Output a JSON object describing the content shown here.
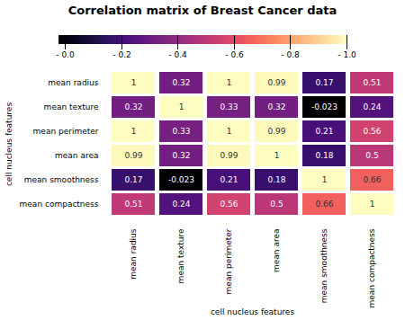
{
  "chart_data": {
    "type": "heatmap",
    "title": "Correlation matrix of Breast Cancer data",
    "xlabel": "cell nucleus features",
    "ylabel": "cell nucleus features",
    "categories": [
      "mean radius",
      "mean texture",
      "mean perimeter",
      "mean area",
      "mean smoothness",
      "mean compactness"
    ],
    "values": [
      [
        1.0,
        0.32,
        1.0,
        0.99,
        0.17,
        0.51
      ],
      [
        0.32,
        1.0,
        0.33,
        0.32,
        -0.023,
        0.24
      ],
      [
        1.0,
        0.33,
        1.0,
        0.99,
        0.21,
        0.56
      ],
      [
        0.99,
        0.32,
        0.99,
        1.0,
        0.18,
        0.5
      ],
      [
        0.17,
        -0.023,
        0.21,
        0.18,
        1.0,
        0.66
      ],
      [
        0.51,
        0.24,
        0.56,
        0.5,
        0.66,
        1.0
      ]
    ],
    "data_labels": true,
    "colorbar_range": [
      -0.023,
      1.0
    ],
    "colorbar_ticks": [
      {
        "value": 0.0,
        "label": "- 0.0"
      },
      {
        "value": 0.2,
        "label": "- 0.2"
      },
      {
        "value": 0.4,
        "label": "- 0.4"
      },
      {
        "value": 0.6,
        "label": "- 0.6"
      },
      {
        "value": 0.8,
        "label": "- 0.8"
      },
      {
        "value": 1.0,
        "label": "- 1.0"
      }
    ]
  }
}
